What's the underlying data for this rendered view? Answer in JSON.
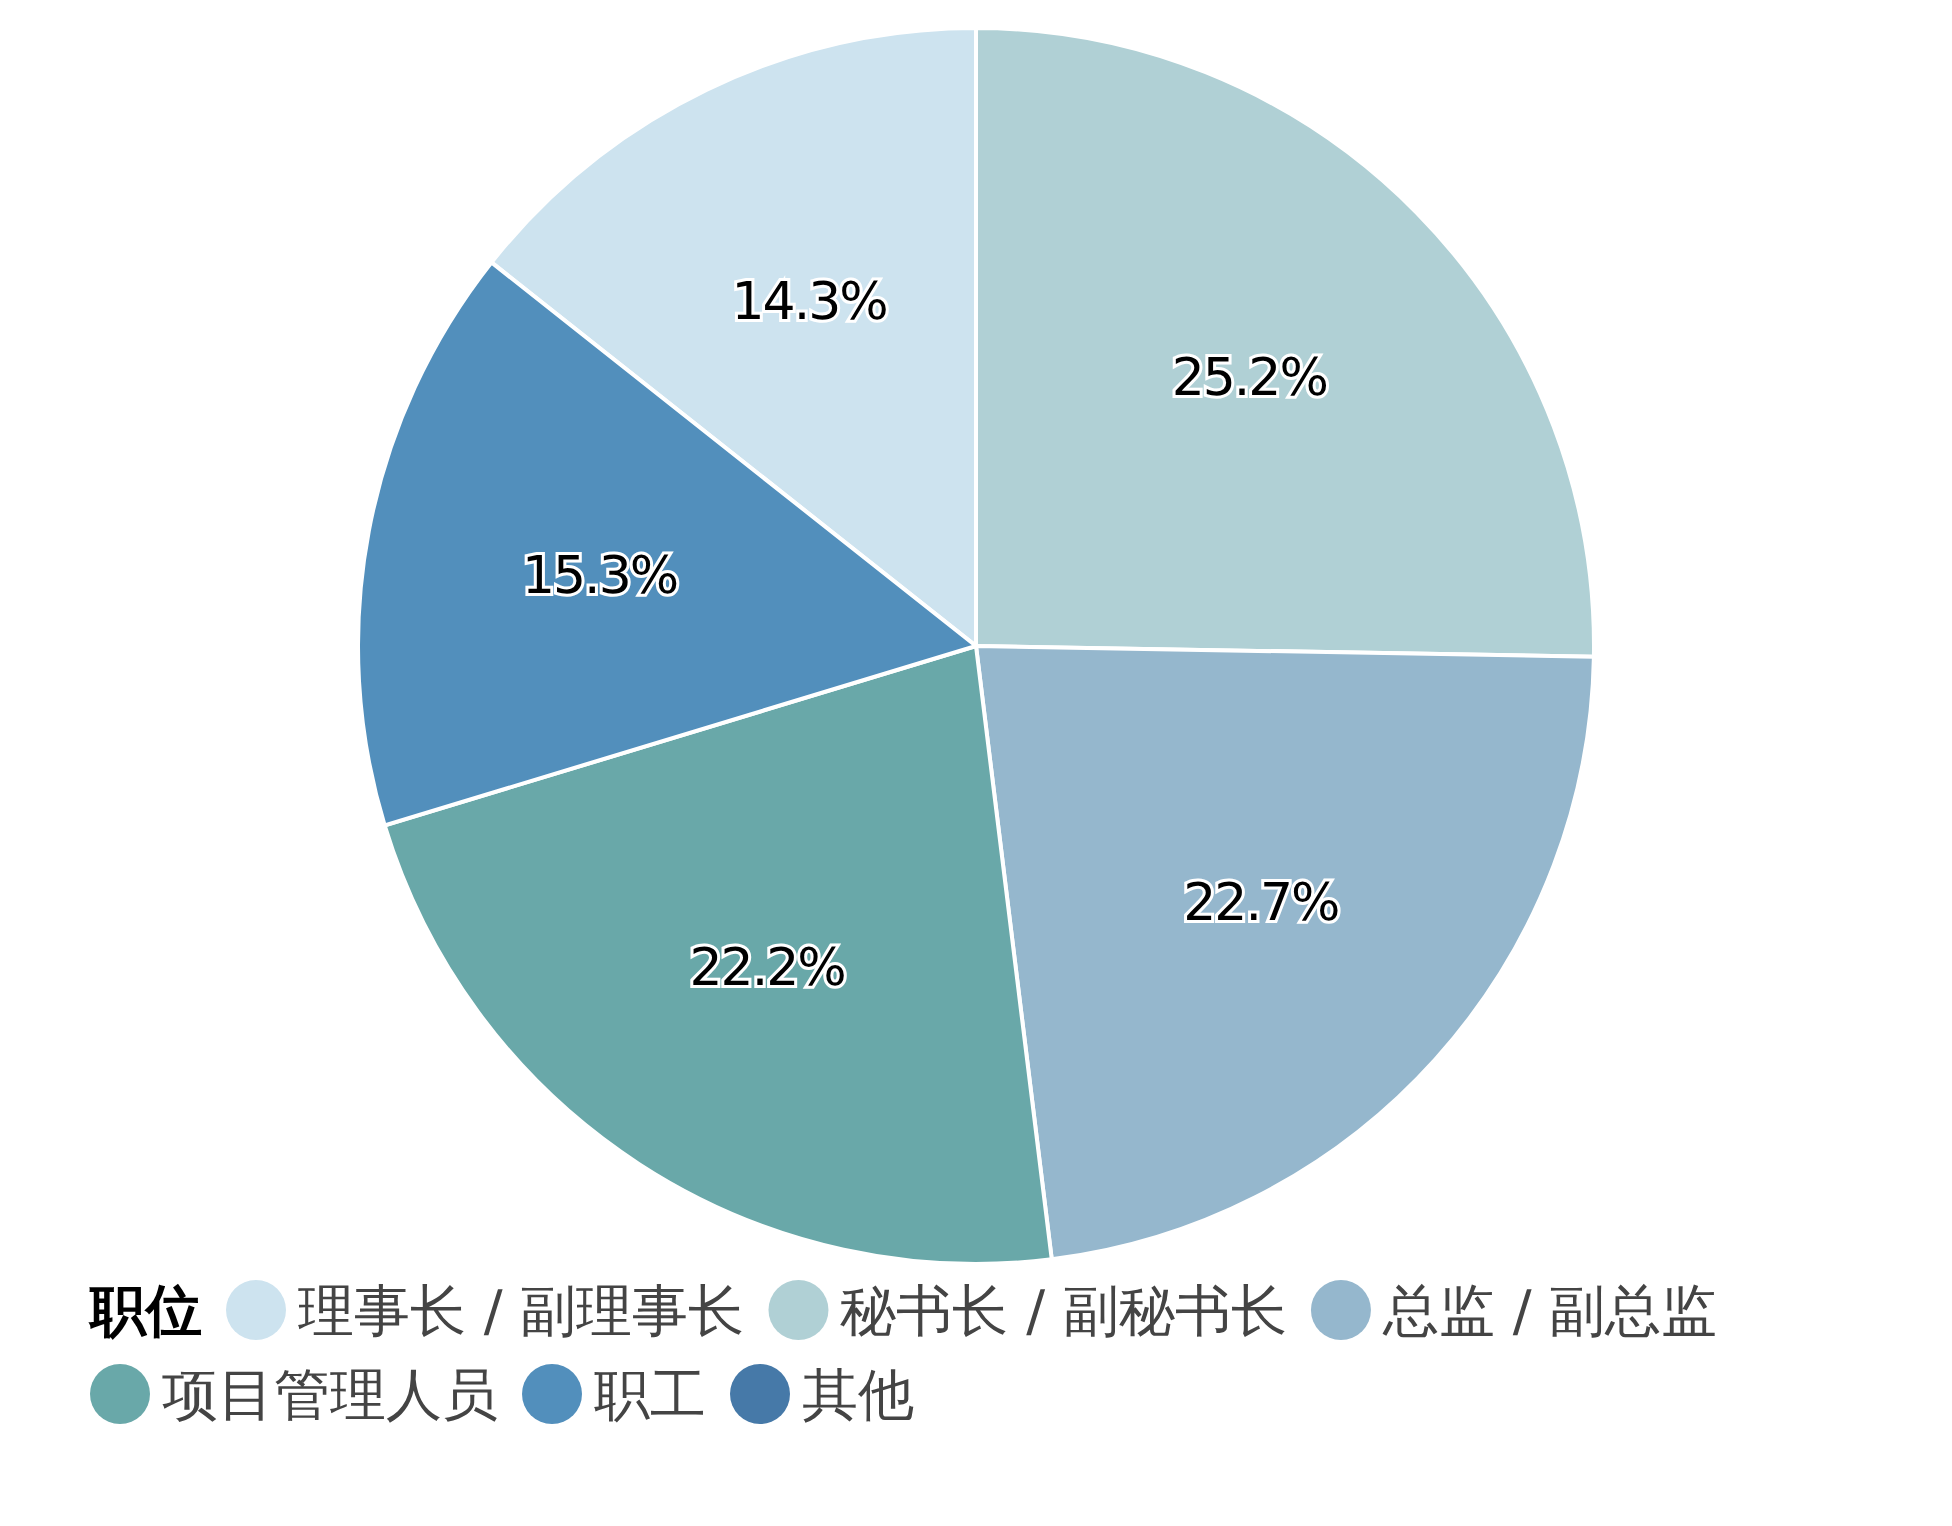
{
  "chart_data": {
    "type": "pie",
    "legend_title": "职位",
    "categories": [
      "理事长 / 副理事长",
      "秘书长 / 副秘书长",
      "总监 / 副总监",
      "项目管理人员",
      "职工",
      "其他"
    ],
    "values": [
      14.3,
      25.2,
      22.7,
      22.2,
      15.3,
      0
    ],
    "colors": [
      "#cde3ef",
      "#b0d0d5",
      "#95b7cd",
      "#69a8a9",
      "#528fbc",
      "#4679a8"
    ],
    "value_labels": [
      "14.3%",
      "25.2%",
      "22.7%",
      "22.2%",
      "15.3%",
      null
    ],
    "legend": "bottom left"
  }
}
